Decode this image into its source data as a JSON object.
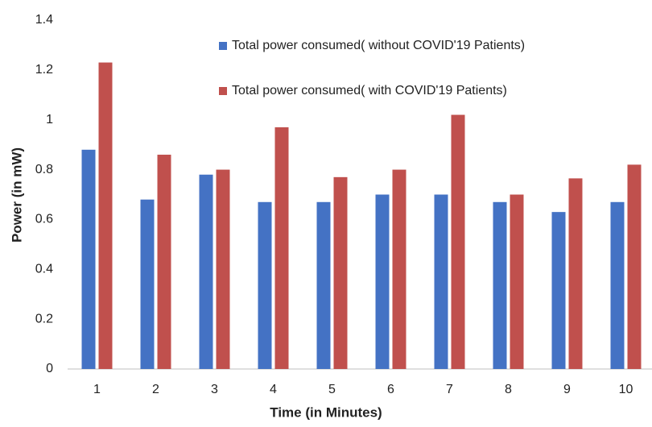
{
  "chart_data": {
    "type": "bar",
    "x_label": "Time (in Minutes)",
    "y_label": "Power (in mW)",
    "categories": [
      "1",
      "2",
      "3",
      "4",
      "5",
      "6",
      "7",
      "8",
      "9",
      "10"
    ],
    "series": [
      {
        "name": "Total power consumed( without COVID'19 Patients)",
        "color": "#4472c4",
        "values": [
          0.88,
          0.68,
          0.78,
          0.67,
          0.67,
          0.7,
          0.7,
          0.67,
          0.63,
          0.67
        ]
      },
      {
        "name": "Total power consumed( with COVID'19 Patients)",
        "color": "#c0504d",
        "values": [
          1.23,
          0.86,
          0.8,
          0.97,
          0.77,
          0.8,
          1.02,
          0.7,
          0.765,
          0.82
        ]
      }
    ],
    "ylim": [
      0,
      1.4
    ],
    "yticks": [
      0,
      0.2,
      0.4,
      0.6,
      0.8,
      1,
      1.2,
      1.4
    ],
    "grid": false,
    "legend": "upper center"
  }
}
